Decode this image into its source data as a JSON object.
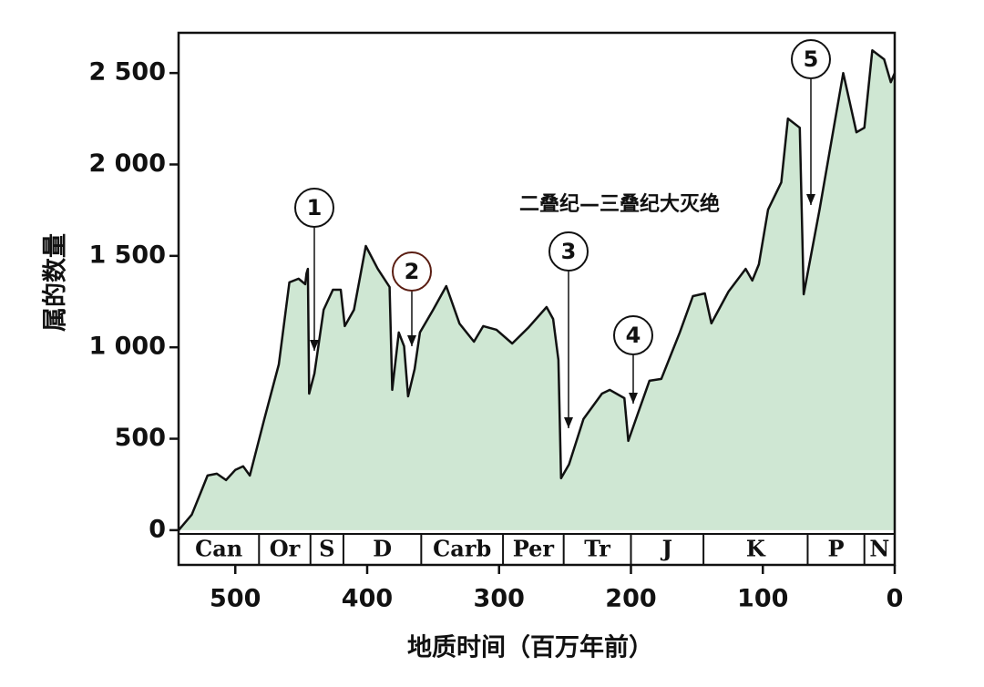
{
  "chart_data": {
    "type": "area",
    "annotation_text": "二叠纪—三叠纪大灭绝",
    "x_label": "地质时间（百万年前）",
    "y_label": "属的数量",
    "color": "#cfe7d3",
    "line_color": "#111111",
    "x": [
      543,
      533,
      526,
      521,
      514,
      507,
      500,
      494,
      489,
      478,
      467,
      459,
      452,
      447,
      446,
      445,
      444,
      440,
      433,
      426,
      420,
      417,
      410,
      401,
      392,
      383,
      381,
      376,
      372,
      369,
      364,
      360,
      350,
      340,
      330,
      319,
      312,
      302,
      290,
      278,
      264,
      259,
      255,
      253,
      247,
      236,
      222,
      216,
      205,
      202,
      195,
      186,
      177,
      163,
      153,
      144,
      139,
      126,
      113,
      108,
      103,
      96,
      86,
      81,
      72,
      69,
      57,
      39,
      29,
      23,
      17,
      8,
      3,
      0
    ],
    "values": [
      0,
      85,
      209,
      299,
      309,
      274,
      329,
      349,
      299,
      608,
      906,
      1355,
      1375,
      1345,
      1404,
      1429,
      747,
      857,
      1205,
      1315,
      1315,
      1116,
      1205,
      1554,
      1429,
      1330,
      767,
      1081,
      1006,
      732,
      882,
      1081,
      1205,
      1335,
      1130,
      1031,
      1116,
      1096,
      1021,
      1106,
      1220,
      1155,
      931,
      284,
      359,
      608,
      747,
      767,
      722,
      488,
      632,
      817,
      827,
      1081,
      1280,
      1295,
      1131,
      1305,
      1429,
      1365,
      1454,
      1753,
      1902,
      2251,
      2201,
      1290,
      1753,
      2500,
      2176,
      2201,
      2624,
      2575,
      2450,
      2500
    ],
    "xlim": [
      543,
      0
    ],
    "ylim": [
      -190,
      2720
    ],
    "xticks": [
      500,
      400,
      300,
      200,
      100,
      0
    ],
    "yticks": [
      0,
      500,
      {
        "value": 1000,
        "label": "1 000"
      },
      {
        "value": 1500,
        "label": "1 500"
      },
      {
        "value": 2000,
        "label": "2 000"
      },
      {
        "value": 2500,
        "label": "2 500"
      }
    ],
    "periods": [
      {
        "name": "Can",
        "start": 543,
        "end": 482
      },
      {
        "name": "Or",
        "start": 482,
        "end": 443
      },
      {
        "name": "S",
        "start": 443,
        "end": 418
      },
      {
        "name": "D",
        "start": 418,
        "end": 359
      },
      {
        "name": "Carb",
        "start": 359,
        "end": 297
      },
      {
        "name": "Per",
        "start": 297,
        "end": 251
      },
      {
        "name": "Tr",
        "start": 251,
        "end": 200
      },
      {
        "name": "J",
        "start": 200,
        "end": 145
      },
      {
        "name": "K",
        "start": 145,
        "end": 66
      },
      {
        "name": "P",
        "start": 66,
        "end": 23
      },
      {
        "name": "N",
        "start": 23,
        "end": 0
      }
    ],
    "events": [
      "1",
      "2",
      "3",
      "4",
      "5"
    ]
  }
}
